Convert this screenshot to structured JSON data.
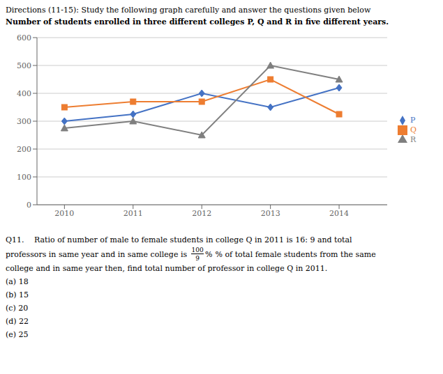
{
  "chart_data": {
    "type": "line",
    "subtitle": "Directions (11-15): Study the following graph carefully and answer the questions given below",
    "title": "Number of students enrolled in three different colleges P, Q and R in five different years.",
    "x": [
      2010,
      2011,
      2012,
      2013,
      2014
    ],
    "series": [
      {
        "name": "P",
        "color": "#4472c4",
        "marker": "diamond",
        "values": [
          300,
          325,
          400,
          350,
          420
        ]
      },
      {
        "name": "Q",
        "color": "#ed7d31",
        "marker": "square",
        "values": [
          350,
          370,
          370,
          450,
          325
        ]
      },
      {
        "name": "R",
        "color": "#7f7f7f",
        "marker": "triangle",
        "values": [
          275,
          300,
          250,
          500,
          450
        ]
      }
    ],
    "xlim": [
      2009.6,
      2014.7
    ],
    "xticks": [
      2010,
      2011,
      2012,
      2013,
      2014
    ],
    "ylim": [
      0,
      600
    ],
    "yticks": [
      0,
      100,
      200,
      300,
      400,
      500,
      600
    ],
    "grid": true,
    "legend": "right",
    "annotations": [
      "Q11.  Ratio of number of male to female students in college Q in 2011 is 16: 9 and total",
      [
        "professors in same year and in same college is",
        {
          "numerator": "100",
          "denominator": "9"
        },
        "%",
        "% of total female students from the same"
      ],
      "college and in same year then, find total number of professor in college Q in 2011.",
      "(a) 18",
      "(b) 15",
      "(c) 20",
      "(d) 22",
      "(e) 25"
    ]
  }
}
